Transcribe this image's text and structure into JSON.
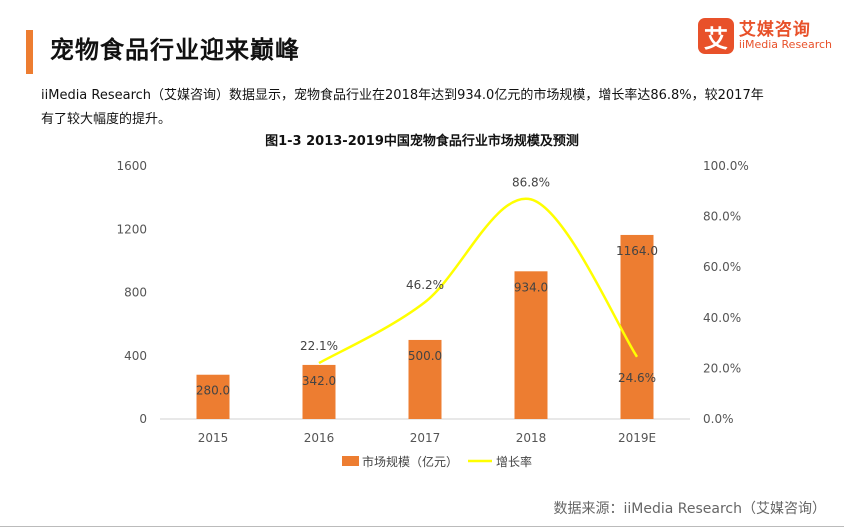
{
  "header": {
    "title": "宠物食品行业迎来巅峰",
    "description_line1": "iiMedia Research（艾媒咨询）数据显示，宠物食品行业在2018年达到934.0亿元的市场规模，增长率达86.8%，较2017年",
    "description_line2": "有了较大幅度的提升。"
  },
  "logo": {
    "mark": "艾",
    "name_cn": "艾媒咨询",
    "name_en": "iiMedia Research"
  },
  "colors": {
    "accent": "#ED7D31",
    "bar": "#ED7D31",
    "line": "#FFFF00",
    "logo": "#E8512A"
  },
  "footer": {
    "source": "数据来源：iiMedia Research（艾媒咨询）"
  },
  "chart_data": {
    "type": "bar",
    "title": "图1-3 2013-2019中国宠物食品行业市场规模及预测",
    "categories": [
      "2015",
      "2016",
      "2017",
      "2018",
      "2019E"
    ],
    "series": [
      {
        "name": "市场规模（亿元）",
        "type": "bar",
        "axis": "left",
        "values": [
          280.0,
          342.0,
          500.0,
          934.0,
          1164.0
        ],
        "labels": [
          "280.0",
          "342.0",
          "500.0",
          "934.0",
          "1164.0"
        ]
      },
      {
        "name": "增长率",
        "type": "line",
        "axis": "right",
        "values": [
          null,
          22.1,
          46.2,
          86.8,
          24.6
        ],
        "labels": [
          "",
          "22.1%",
          "46.2%",
          "86.8%",
          "24.6%"
        ]
      }
    ],
    "y_left": {
      "min": 0,
      "max": 1600,
      "ticks": [
        "0",
        "400",
        "800",
        "1200",
        "1600"
      ]
    },
    "y_right": {
      "min": 0,
      "max": 100,
      "ticks": [
        "0.0%",
        "20.0%",
        "40.0%",
        "60.0%",
        "80.0%",
        "100.0%"
      ]
    },
    "grid": false,
    "legend": "bottom"
  }
}
